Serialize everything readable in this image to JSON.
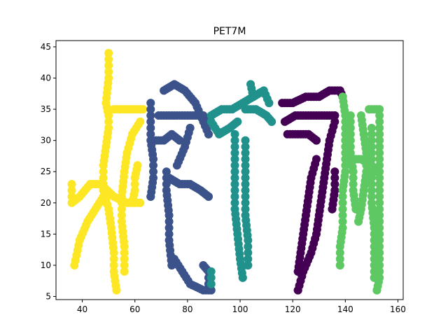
{
  "chart_data": {
    "type": "scatter",
    "title": "PET7M",
    "xlabel": "",
    "ylabel": "",
    "xlim": [
      30,
      162
    ],
    "ylim": [
      4.5,
      46
    ],
    "xticks": [
      40,
      60,
      80,
      100,
      120,
      140,
      160
    ],
    "yticks": [
      5,
      10,
      15,
      20,
      25,
      30,
      35,
      40,
      45
    ],
    "grid": false,
    "legend": "none",
    "series": [
      {
        "color": "#fde725",
        "strokes": [
          [
            [
              50,
              44
            ],
            [
              50,
              40
            ],
            [
              49,
              36
            ],
            [
              50,
              34
            ],
            [
              50,
              32
            ],
            [
              49,
              29
            ],
            [
              48,
              26
            ],
            [
              48,
              22
            ],
            [
              50,
              19
            ],
            [
              51,
              16
            ],
            [
              52,
              12
            ],
            [
              52,
              9
            ],
            [
              53,
              6
            ]
          ],
          [
            [
              52,
              35
            ],
            [
              56,
              35
            ],
            [
              60,
              35
            ],
            [
              63,
              35
            ]
          ],
          [
            [
              36,
              23
            ],
            [
              36,
              20
            ],
            [
              39,
              21
            ],
            [
              43,
              23
            ],
            [
              47,
              23
            ],
            [
              52,
              21
            ],
            [
              57,
              20
            ],
            [
              62,
              20
            ]
          ],
          [
            [
              37,
              10
            ],
            [
              39,
              14
            ],
            [
              42,
              17
            ],
            [
              45,
              19
            ],
            [
              48,
              21
            ]
          ],
          [
            [
              56,
              9
            ],
            [
              56,
              13
            ],
            [
              55,
              17
            ],
            [
              55,
              21
            ],
            [
              56,
              25
            ],
            [
              57,
              28
            ],
            [
              59,
              31
            ],
            [
              62,
              33
            ]
          ],
          [
            [
              59,
              20
            ],
            [
              60,
              22
            ],
            [
              60,
              24
            ],
            [
              61,
              26
            ]
          ]
        ]
      },
      {
        "color": "#3b528b",
        "strokes": [
          [
            [
              66,
              36
            ],
            [
              66,
              33
            ],
            [
              66,
              30
            ],
            [
              67,
              27
            ],
            [
              67,
              24
            ],
            [
              66,
              21
            ]
          ],
          [
            [
              71,
              38
            ],
            [
              75,
              39
            ],
            [
              79,
              38
            ],
            [
              83,
              36
            ],
            [
              86,
              33
            ],
            [
              88,
              31
            ]
          ],
          [
            [
              69,
              34
            ],
            [
              73,
              34
            ],
            [
              77,
              34
            ],
            [
              81,
              34
            ],
            [
              86,
              34
            ],
            [
              88,
              33
            ]
          ],
          [
            [
              68,
              30
            ],
            [
              71,
              30
            ],
            [
              74,
              31
            ],
            [
              77,
              30
            ]
          ],
          [
            [
              72,
              25
            ],
            [
              72,
              22
            ],
            [
              73,
              18
            ],
            [
              73,
              14
            ],
            [
              74,
              10
            ]
          ],
          [
            [
              75,
              11
            ],
            [
              78,
              9
            ],
            [
              81,
              7
            ],
            [
              86,
              6
            ],
            [
              89,
              6
            ]
          ],
          [
            [
              86,
              10
            ],
            [
              88,
              9
            ],
            [
              88,
              7
            ]
          ],
          [
            [
              73,
              24
            ],
            [
              77,
              23
            ],
            [
              81,
              23
            ],
            [
              85,
              22
            ],
            [
              88,
              21
            ]
          ],
          [
            [
              76,
              26
            ],
            [
              79,
              29
            ],
            [
              81,
              32
            ]
          ]
        ]
      },
      {
        "color": "#21918c",
        "strokes": [
          [
            [
              89,
              34
            ],
            [
              93,
              35
            ],
            [
              97,
              35
            ],
            [
              101,
              36
            ],
            [
              105,
              37
            ],
            [
              109,
              38
            ],
            [
              111,
              36
            ]
          ],
          [
            [
              102,
              35
            ],
            [
              106,
              35
            ],
            [
              110,
              34
            ],
            [
              112,
              33
            ]
          ],
          [
            [
              104,
              39
            ],
            [
              105,
              37
            ]
          ],
          [
            [
              89,
              33
            ],
            [
              92,
              31
            ],
            [
              96,
              32
            ],
            [
              99,
              33
            ]
          ],
          [
            [
              98,
              31
            ],
            [
              98,
              27
            ],
            [
              98,
              23
            ],
            [
              98,
              19
            ],
            [
              99,
              15
            ],
            [
              100,
              11
            ],
            [
              101,
              8
            ]
          ],
          [
            [
              102,
              30
            ],
            [
              102,
              26
            ],
            [
              102,
              22
            ],
            [
              102,
              18
            ],
            [
              103,
              14
            ],
            [
              103,
              10
            ]
          ],
          [
            [
              89,
              9
            ],
            [
              89,
              7
            ]
          ]
        ]
      },
      {
        "color": "#440154",
        "strokes": [
          [
            [
              116,
              36
            ],
            [
              120,
              36
            ],
            [
              125,
              37
            ],
            [
              130,
              37
            ],
            [
              134,
              38
            ],
            [
              138,
              38
            ],
            [
              139,
              37
            ]
          ],
          [
            [
              117,
              33
            ],
            [
              121,
              34
            ],
            [
              126,
              34
            ],
            [
              131,
              34
            ],
            [
              136,
              34
            ]
          ],
          [
            [
              118,
              31
            ],
            [
              122,
              31
            ],
            [
              126,
              31
            ],
            [
              129,
              30
            ]
          ],
          [
            [
              136,
              33
            ],
            [
              134,
              30
            ],
            [
              133,
              27
            ],
            [
              132,
              24
            ],
            [
              131,
              21
            ],
            [
              130,
              18
            ],
            [
              129,
              15
            ],
            [
              127,
              12
            ],
            [
              124,
              9
            ],
            [
              122,
              6
            ]
          ],
          [
            [
              129,
              27
            ],
            [
              127,
              24
            ],
            [
              126,
              21
            ],
            [
              125,
              18
            ],
            [
              124,
              15
            ],
            [
              123,
              12
            ],
            [
              122,
              9
            ]
          ],
          [
            [
              136,
              25
            ],
            [
              136,
              22
            ],
            [
              135,
              19
            ]
          ]
        ]
      },
      {
        "color": "#5ec962",
        "strokes": [
          [
            [
              139,
              37
            ],
            [
              140,
              34
            ],
            [
              140,
              31
            ],
            [
              140,
              28
            ],
            [
              140,
              25
            ],
            [
              139,
              22
            ],
            [
              139,
              19
            ],
            [
              139,
              16
            ],
            [
              138,
              13
            ],
            [
              138,
              10
            ]
          ],
          [
            [
              142,
              34
            ],
            [
              142,
              31
            ],
            [
              142,
              28
            ],
            [
              143,
              25
            ],
            [
              143,
              22
            ],
            [
              144,
              19
            ]
          ],
          [
            [
              142,
              27
            ],
            [
              146,
              27
            ],
            [
              150,
              26
            ],
            [
              152,
              25
            ]
          ],
          [
            [
              146,
              34
            ],
            [
              147,
              31
            ],
            [
              148,
              28
            ],
            [
              148,
              25
            ],
            [
              147,
              22
            ],
            [
              146,
              19
            ],
            [
              145,
              17
            ]
          ],
          [
            [
              149,
              35
            ],
            [
              151,
              35
            ],
            [
              153,
              35
            ],
            [
              153,
              31
            ],
            [
              153,
              27
            ],
            [
              153,
              23
            ],
            [
              153,
              19
            ],
            [
              153,
              15
            ],
            [
              153,
              11
            ],
            [
              153,
              8
            ],
            [
              152,
              6
            ]
          ],
          [
            [
              150,
              32
            ],
            [
              150,
              28
            ],
            [
              150,
              24
            ],
            [
              150,
              20
            ],
            [
              151,
              16
            ],
            [
              151,
              12
            ],
            [
              151,
              8
            ]
          ]
        ]
      }
    ]
  }
}
